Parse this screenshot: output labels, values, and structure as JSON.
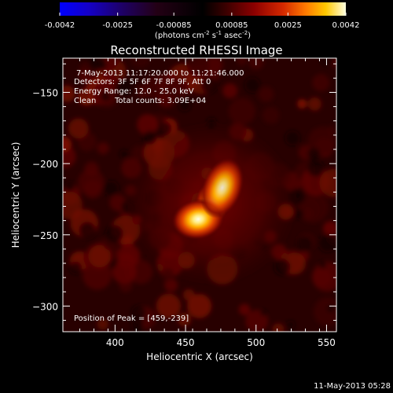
{
  "chart_data": {
    "type": "heatmap",
    "title": "Reconstructed RHESSI Image",
    "xlabel": "Heliocentric X (arcsec)",
    "ylabel": "Heliocentric Y (arcsec)",
    "xlim": [
      363,
      557
    ],
    "ylim": [
      -318,
      -126
    ],
    "x_ticks": [
      400,
      450,
      500,
      550
    ],
    "y_ticks": [
      -300,
      -250,
      -200,
      -150
    ],
    "colorbar": {
      "min": -0.0042,
      "max": 0.0042,
      "tick_values": [
        -0.0042,
        -0.0025,
        -0.00085,
        0.00085,
        0.0025,
        0.0042
      ],
      "tick_labels": [
        "-0.0042",
        "-0.0025",
        "-0.00085",
        "0.00085",
        "0.0025",
        "0.0042"
      ],
      "unit_prefix": "(photons cm",
      "unit_exp1": "-2",
      "unit_mid": " s",
      "unit_exp2": "-1",
      "unit_mid2": " asec",
      "unit_exp3": "-2",
      "unit_suffix": ")"
    },
    "annotations": {
      "time_range": "7-May-2013 11:17:20.000  to 11:21:46.000",
      "detectors": "Detectors: 3F 5F 6F 7F 8F 9F, Att 0",
      "energy": "Energy Range: 12.0 - 25.0 keV",
      "method": "Clean",
      "counts": "Total counts: 3.09E+04",
      "peak": "Position of Peak = [459,-239]"
    },
    "sources": [
      {
        "x": 459,
        "y": -239,
        "value": 0.0042
      },
      {
        "x": 476,
        "y": -217,
        "value": 0.0037
      }
    ],
    "footer_timestamp": "11-May-2013 05:28"
  }
}
